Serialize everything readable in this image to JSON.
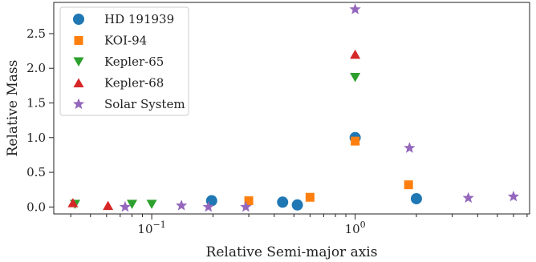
{
  "chart_data": {
    "type": "scatter",
    "xlabel": "Relative Semi-major axis",
    "ylabel": "Relative Mass",
    "xscale": "log",
    "xlim": [
      0.033,
      7.2
    ],
    "ylim": [
      -0.1,
      2.95
    ],
    "yticks": [
      "0.0",
      "0.5",
      "1.0",
      "1.5",
      "2.0",
      "2.5"
    ],
    "xtick_labels": [
      {
        "value": 0.1,
        "base": "10",
        "exp": "−1"
      },
      {
        "value": 1,
        "base": "10",
        "exp": "0"
      }
    ],
    "grid": false,
    "legend_position": "top-left",
    "series": [
      {
        "name": "HD 191939",
        "marker": "circle",
        "color": "#1f77b4",
        "x": [
          0.197,
          0.44,
          0.52,
          1.0,
          2.0
        ],
        "y": [
          0.09,
          0.07,
          0.03,
          1.0,
          0.12
        ]
      },
      {
        "name": "KOI-94",
        "marker": "square",
        "color": "#ff7f0e",
        "x": [
          0.3,
          0.6,
          1.0,
          1.83
        ],
        "y": [
          0.09,
          0.14,
          0.95,
          0.32
        ]
      },
      {
        "name": "Kepler-65",
        "marker": "triangle-down",
        "color": "#2ca02c",
        "x": [
          0.042,
          0.08,
          0.1,
          1.0
        ],
        "y": [
          0.04,
          0.04,
          0.04,
          1.87
        ]
      },
      {
        "name": "Kepler-68",
        "marker": "triangle-up",
        "color": "#d62728",
        "x": [
          0.041,
          0.061,
          1.0
        ],
        "y": [
          0.06,
          0.02,
          2.2
        ]
      },
      {
        "name": "Solar System",
        "marker": "star",
        "color": "#9467bd",
        "x": [
          0.074,
          0.14,
          0.19,
          0.29,
          1.0,
          1.85,
          3.6,
          6.0
        ],
        "y": [
          0.0,
          0.02,
          0.0,
          0.0,
          2.85,
          0.85,
          0.13,
          0.15
        ]
      }
    ]
  }
}
